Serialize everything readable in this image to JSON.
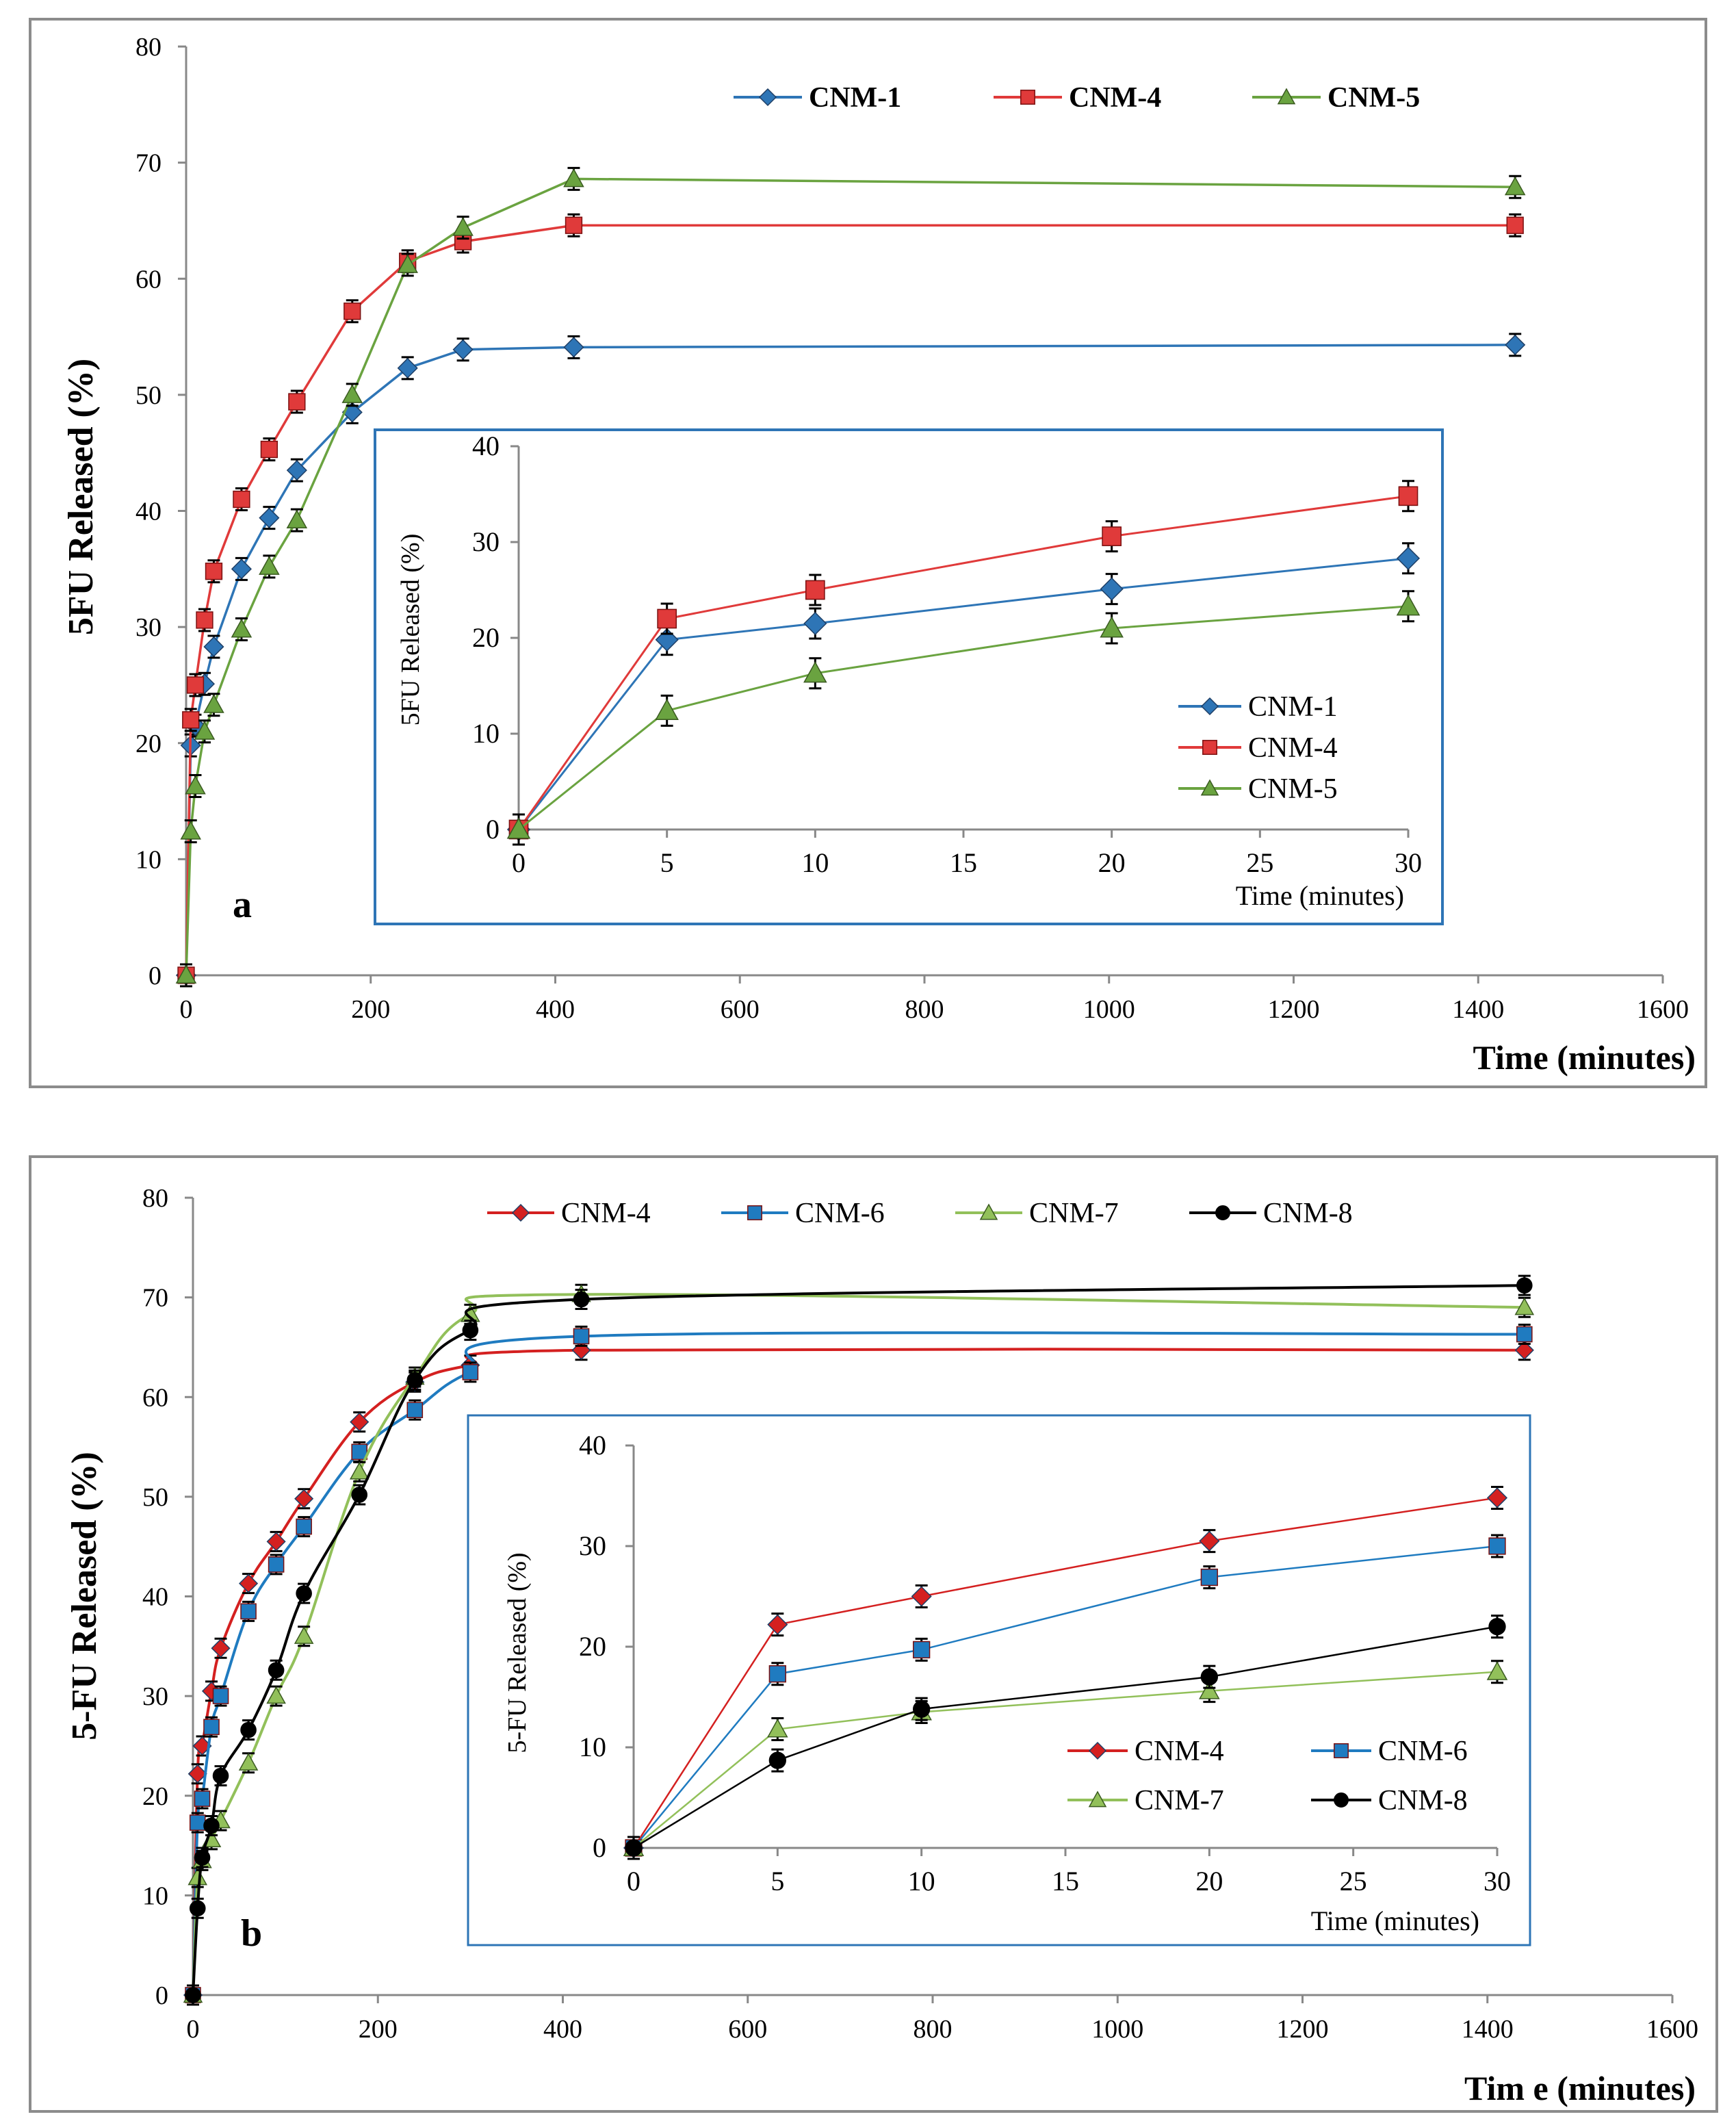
{
  "chart_data": [
    {
      "panel": "a",
      "type": "line",
      "ylabel": "5FU Released (%)",
      "xlabel": "Time (minutes)",
      "xlim": [
        0,
        1600
      ],
      "xticks": [
        0,
        200,
        400,
        600,
        800,
        1000,
        1200,
        1400,
        1600
      ],
      "ylim": [
        0,
        80
      ],
      "yticks": [
        0,
        10,
        20,
        30,
        40,
        50,
        60,
        70,
        80
      ],
      "legend_position": "top",
      "series": [
        {
          "name": "CNM-1",
          "color": "#2e75b6",
          "marker": "diamond",
          "x": [
            0,
            5,
            10,
            20,
            30,
            60,
            90,
            120,
            180,
            240,
            300,
            420,
            1440
          ],
          "y": [
            0,
            19.8,
            21.5,
            25.1,
            28.3,
            35.0,
            39.4,
            43.5,
            48.5,
            52.3,
            53.9,
            54.1,
            54.3
          ]
        },
        {
          "name": "CNM-4",
          "color": "#e03a3a",
          "marker": "square",
          "x": [
            0,
            5,
            10,
            20,
            30,
            60,
            90,
            120,
            180,
            240,
            300,
            420,
            1440
          ],
          "y": [
            0,
            22.0,
            25.0,
            30.6,
            34.8,
            41.0,
            45.3,
            49.4,
            57.2,
            61.5,
            63.2,
            64.6,
            64.6
          ]
        },
        {
          "name": "CNM-5",
          "color": "#6aa340",
          "marker": "triangle",
          "x": [
            0,
            5,
            10,
            20,
            30,
            60,
            90,
            120,
            180,
            240,
            300,
            420,
            1440
          ],
          "y": [
            0,
            12.4,
            16.3,
            21.0,
            23.3,
            29.8,
            35.2,
            39.2,
            50.0,
            61.2,
            64.4,
            68.6,
            67.9
          ]
        }
      ],
      "inset": {
        "ylabel": "5FU Released (%)",
        "xlabel": "Time (minutes)",
        "xlim": [
          0,
          30
        ],
        "xticks": [
          0,
          5,
          10,
          15,
          20,
          25,
          30
        ],
        "ylim": [
          0,
          40
        ],
        "yticks": [
          0,
          10,
          20,
          30,
          40
        ],
        "legend_position": "bottom-right",
        "series": [
          {
            "name": "CNM-1",
            "x": [
              0,
              5,
              10,
              20,
              30
            ],
            "y": [
              0,
              19.8,
              21.5,
              25.1,
              28.3
            ]
          },
          {
            "name": "CNM-4",
            "x": [
              0,
              5,
              10,
              20,
              30
            ],
            "y": [
              0,
              22.0,
              25.0,
              30.6,
              34.8
            ]
          },
          {
            "name": "CNM-5",
            "x": [
              0,
              5,
              10,
              20,
              30
            ],
            "y": [
              0,
              12.4,
              16.3,
              21.0,
              23.3
            ]
          }
        ]
      }
    },
    {
      "panel": "b",
      "type": "line",
      "ylabel": "5-FU Released (%)",
      "xlabel": "Tim e (minutes)",
      "xlim": [
        0,
        1600
      ],
      "xticks": [
        0,
        200,
        400,
        600,
        800,
        1000,
        1200,
        1400,
        1600
      ],
      "ylim": [
        0,
        80
      ],
      "yticks": [
        0,
        10,
        20,
        30,
        40,
        50,
        60,
        70,
        80
      ],
      "legend_position": "top",
      "series": [
        {
          "name": "CNM-4",
          "color": "#d42020",
          "marker": "diamond",
          "x": [
            0,
            5,
            10,
            20,
            30,
            60,
            90,
            120,
            180,
            240,
            300,
            420,
            1440
          ],
          "y": [
            0,
            22.2,
            25.0,
            30.5,
            34.8,
            41.3,
            45.5,
            49.8,
            57.5,
            61.5,
            63.2,
            64.7,
            64.7
          ]
        },
        {
          "name": "CNM-6",
          "color": "#1f7bc0",
          "marker": "square",
          "x": [
            0,
            5,
            10,
            20,
            30,
            60,
            90,
            120,
            180,
            240,
            300,
            420,
            1440
          ],
          "y": [
            0,
            17.3,
            19.7,
            26.9,
            30.0,
            38.5,
            43.2,
            47.0,
            54.5,
            58.7,
            62.5,
            66.1,
            66.3
          ]
        },
        {
          "name": "CNM-7",
          "color": "#92c05a",
          "marker": "triangle",
          "x": [
            0,
            5,
            10,
            20,
            30,
            60,
            90,
            120,
            180,
            240,
            300,
            420,
            1440
          ],
          "y": [
            0,
            11.8,
            13.5,
            15.6,
            17.5,
            23.3,
            30.0,
            36.0,
            52.5,
            62.0,
            68.3,
            70.3,
            69.0
          ]
        },
        {
          "name": "CNM-8",
          "color": "#000000",
          "marker": "circle",
          "x": [
            0,
            5,
            10,
            20,
            30,
            60,
            90,
            120,
            180,
            240,
            300,
            420,
            1440
          ],
          "y": [
            0,
            8.7,
            13.8,
            17.0,
            22.0,
            26.6,
            32.6,
            40.3,
            50.2,
            61.7,
            66.7,
            69.8,
            71.2
          ]
        }
      ],
      "inset": {
        "ylabel": "5-FU Released (%)",
        "xlabel": "Time (minutes)",
        "xlim": [
          0,
          30
        ],
        "xticks": [
          0,
          5,
          10,
          15,
          20,
          25,
          30
        ],
        "ylim": [
          0,
          40
        ],
        "yticks": [
          0,
          10,
          20,
          30,
          40
        ],
        "legend_position": "bottom-right",
        "series": [
          {
            "name": "CNM-4",
            "x": [
              0,
              5,
              10,
              20,
              30
            ],
            "y": [
              0,
              22.2,
              25.0,
              30.5,
              34.8
            ]
          },
          {
            "name": "CNM-6",
            "x": [
              0,
              5,
              10,
              20,
              30
            ],
            "y": [
              0,
              17.3,
              19.7,
              26.9,
              30.0
            ]
          },
          {
            "name": "CNM-7",
            "x": [
              0,
              5,
              10,
              20,
              30
            ],
            "y": [
              0,
              11.8,
              13.5,
              15.6,
              17.5
            ]
          },
          {
            "name": "CNM-8",
            "x": [
              0,
              5,
              10,
              20,
              30
            ],
            "y": [
              0,
              8.7,
              13.8,
              17.0,
              22.0
            ]
          }
        ]
      }
    }
  ]
}
